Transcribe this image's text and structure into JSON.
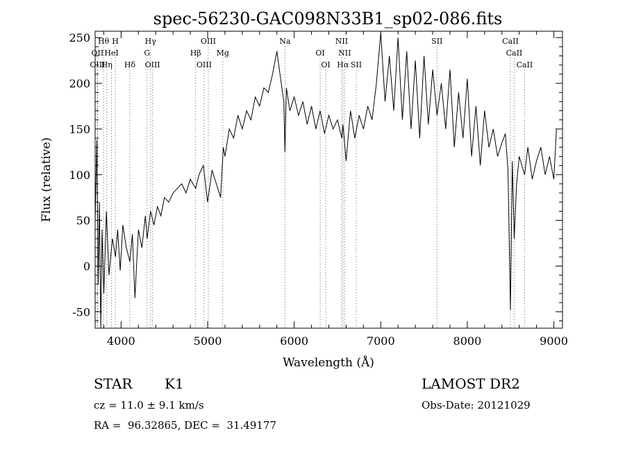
{
  "chart_data": {
    "type": "line",
    "title": "spec-56230-GAC098N33B1_sp02-086.fits",
    "xlabel": "Wavelength (Å)",
    "ylabel": "Flux (relative)",
    "xlim": [
      3700,
      9100
    ],
    "ylim": [
      -68,
      257
    ],
    "x_ticks": [
      4000,
      5000,
      6000,
      7000,
      8000,
      9000
    ],
    "y_ticks": [
      -50,
      0,
      50,
      100,
      150,
      200,
      250
    ],
    "grid": false,
    "series": [
      {
        "x": [
          3700,
          3720,
          3735,
          3750,
          3765,
          3780,
          3800,
          3830,
          3860,
          3900,
          3935,
          3960,
          3990,
          4020,
          4060,
          4101,
          4130,
          4160,
          4200,
          4240,
          4280,
          4300,
          4340,
          4380,
          4420,
          4460,
          4500,
          4550,
          4600,
          4650,
          4700,
          4750,
          4800,
          4861,
          4900,
          4950,
          5000,
          5050,
          5100,
          5150,
          5180,
          5200,
          5250,
          5300,
          5350,
          5400,
          5450,
          5500,
          5550,
          5600,
          5650,
          5700,
          5750,
          5800,
          5850,
          5880,
          5893,
          5910,
          5950,
          6000,
          6050,
          6100,
          6150,
          6200,
          6250,
          6300,
          6350,
          6400,
          6450,
          6500,
          6550,
          6563,
          6600,
          6650,
          6700,
          6750,
          6800,
          6850,
          6900,
          6950,
          7000,
          7050,
          7100,
          7150,
          7200,
          7250,
          7300,
          7350,
          7400,
          7450,
          7500,
          7550,
          7600,
          7650,
          7700,
          7750,
          7800,
          7850,
          7900,
          7950,
          8000,
          8050,
          8100,
          8150,
          8200,
          8250,
          8300,
          8350,
          8400,
          8440,
          8470,
          8498,
          8520,
          8542,
          8570,
          8600,
          8662,
          8700,
          8750,
          8800,
          8850,
          8900,
          8950,
          9000,
          9030
        ],
        "y": [
          50,
          138,
          -20,
          70,
          -68,
          40,
          -30,
          60,
          -10,
          30,
          10,
          40,
          -5,
          45,
          20,
          5,
          35,
          -35,
          40,
          20,
          55,
          30,
          60,
          45,
          65,
          55,
          75,
          70,
          80,
          85,
          90,
          80,
          95,
          85,
          100,
          110,
          70,
          105,
          90,
          75,
          130,
          120,
          150,
          140,
          165,
          150,
          170,
          160,
          185,
          175,
          195,
          190,
          210,
          235,
          200,
          180,
          125,
          195,
          170,
          185,
          165,
          180,
          155,
          175,
          150,
          170,
          145,
          165,
          150,
          160,
          140,
          155,
          115,
          170,
          140,
          165,
          150,
          175,
          160,
          200,
          255,
          180,
          230,
          170,
          250,
          160,
          235,
          150,
          225,
          140,
          230,
          155,
          215,
          165,
          200,
          150,
          215,
          130,
          190,
          140,
          205,
          120,
          175,
          110,
          170,
          130,
          150,
          120,
          135,
          145,
          105,
          -48,
          115,
          30,
          90,
          120,
          100,
          130,
          95,
          115,
          130,
          100,
          120,
          95,
          150
        ]
      }
    ],
    "line_markers": [
      {
        "label": "Hθ",
        "x": 3797,
        "row": 1
      },
      {
        "label": "H",
        "x": 3933,
        "row": 1
      },
      {
        "label": "Hγ",
        "x": 4340,
        "row": 1
      },
      {
        "label": "OIII",
        "x": 5007,
        "row": 1
      },
      {
        "label": "Na",
        "x": 5893,
        "row": 1
      },
      {
        "label": "NII",
        "x": 6548,
        "row": 1
      },
      {
        "label": "SII",
        "x": 7650,
        "row": 1
      },
      {
        "label": "CaII",
        "x": 8498,
        "row": 1
      },
      {
        "label": "OII",
        "x": 3727,
        "row": 2
      },
      {
        "label": "HeI",
        "x": 3889,
        "row": 2
      },
      {
        "label": "G",
        "x": 4300,
        "row": 2
      },
      {
        "label": "Hβ",
        "x": 4861,
        "row": 2
      },
      {
        "label": "Mg",
        "x": 5175,
        "row": 2
      },
      {
        "label": "OI",
        "x": 6300,
        "row": 2
      },
      {
        "label": "NII",
        "x": 6583,
        "row": 2
      },
      {
        "label": "CaII",
        "x": 8542,
        "row": 2
      },
      {
        "label": "OIII",
        "x": 3727,
        "row": 3
      },
      {
        "label": "Hη",
        "x": 3835,
        "row": 3
      },
      {
        "label": "Hδ",
        "x": 4101,
        "row": 3
      },
      {
        "label": "OIII",
        "x": 4363,
        "row": 3
      },
      {
        "label": "OIII",
        "x": 4959,
        "row": 3
      },
      {
        "label": "OI",
        "x": 6364,
        "row": 3
      },
      {
        "label": "Hα",
        "x": 6563,
        "row": 3
      },
      {
        "label": "SII",
        "x": 6717,
        "row": 3
      },
      {
        "label": "CaII",
        "x": 8662,
        "row": 3
      }
    ]
  },
  "info": {
    "object_class": "STAR",
    "subclass": "K1",
    "survey": "LAMOST DR2",
    "cz": "cz = 11.0 ± 9.1 km/s",
    "obs_date": "Obs-Date: 20121029",
    "coords": "RA =  96.32865, DEC =  31.49177"
  }
}
